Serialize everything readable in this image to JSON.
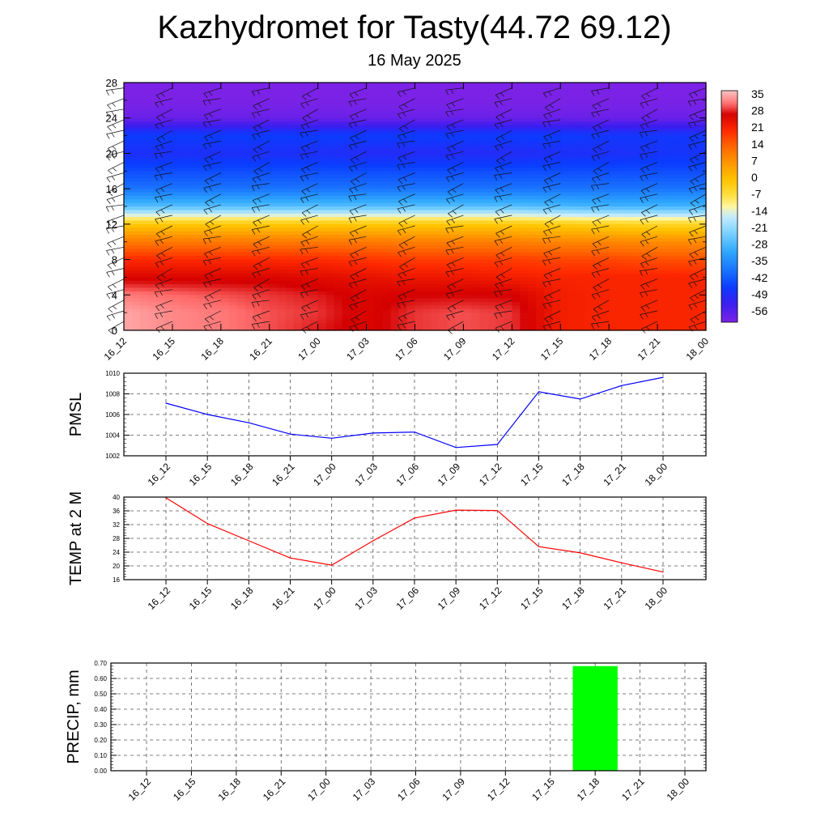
{
  "title": "Kazhydromet for Tasty(44.72 69.12)",
  "subtitle": "16 May 2025",
  "time_labels": [
    "16_12",
    "16_15",
    "16_18",
    "16_21",
    "17_00",
    "17_03",
    "17_06",
    "17_09",
    "17_12",
    "17_15",
    "17_18",
    "17_21",
    "18_00"
  ],
  "chart_data": [
    {
      "type": "heatmap",
      "name": "temperature-cross-section",
      "x": [
        "16_12",
        "16_15",
        "16_18",
        "16_21",
        "17_00",
        "17_03",
        "17_06",
        "17_09",
        "17_12",
        "17_15",
        "17_18",
        "17_21",
        "18_00"
      ],
      "y_ticks": [
        0,
        4,
        8,
        12,
        16,
        20,
        24,
        28
      ],
      "ylim": [
        0,
        28
      ],
      "colorbar_labels": [
        "35",
        "28",
        "21",
        "14",
        "7",
        "0",
        "-7",
        "-14",
        "-21",
        "-28",
        "-35",
        "-42",
        "-49",
        "-56"
      ],
      "colorbar_range": [
        -60,
        38
      ],
      "colorscale": [
        {
          "v": -60,
          "color": "#7b22e6"
        },
        {
          "v": -52,
          "color": "#3a1ef0"
        },
        {
          "v": -45,
          "color": "#0a3cff"
        },
        {
          "v": -38,
          "color": "#1a74ff"
        },
        {
          "v": -30,
          "color": "#2fa8ff"
        },
        {
          "v": -22,
          "color": "#7dd3ff"
        },
        {
          "v": -15,
          "color": "#c8ecff"
        },
        {
          "v": -11,
          "color": "#fff6a0"
        },
        {
          "v": -7,
          "color": "#ffe24a"
        },
        {
          "v": 0,
          "color": "#ffc400"
        },
        {
          "v": 7,
          "color": "#ff9a00"
        },
        {
          "v": 14,
          "color": "#ff6a00"
        },
        {
          "v": 21,
          "color": "#ff2a00"
        },
        {
          "v": 28,
          "color": "#d40000"
        },
        {
          "v": 32,
          "color": "#ff6a6a"
        },
        {
          "v": 38,
          "color": "#ffc4c4"
        }
      ],
      "profile_heights": [
        0,
        2,
        4,
        6,
        8,
        10,
        12,
        14,
        16,
        18,
        20,
        22,
        24,
        26,
        28
      ],
      "temperature_profiles": [
        [
          36,
          36,
          33,
          27,
          21,
          12,
          -1,
          -26,
          -38,
          -43,
          -48,
          -45,
          -58,
          -60,
          -60
        ],
        [
          34,
          34,
          32,
          27,
          21,
          12,
          -1,
          -26,
          -38,
          -43,
          -48,
          -45,
          -58,
          -60,
          -60
        ],
        [
          33,
          33,
          31,
          27,
          21,
          12,
          -1,
          -26,
          -38,
          -43,
          -48,
          -45,
          -58,
          -60,
          -60
        ],
        [
          31,
          31,
          30,
          27,
          21,
          12,
          -1,
          -26,
          -38,
          -43,
          -48,
          -45,
          -58,
          -60,
          -60
        ],
        [
          29,
          30,
          29,
          26,
          21,
          12,
          -1,
          -26,
          -38,
          -43,
          -48,
          -45,
          -58,
          -60,
          -60
        ],
        [
          27,
          27,
          27,
          25,
          20,
          12,
          -1,
          -26,
          -38,
          -43,
          -49,
          -45,
          -58,
          -60,
          -60
        ],
        [
          30,
          30,
          28,
          24,
          19,
          11,
          -1,
          -26,
          -38,
          -43,
          -49,
          -45,
          -58,
          -60,
          -60
        ],
        [
          31,
          31,
          28,
          24,
          19,
          11,
          -1,
          -26,
          -38,
          -43,
          -49,
          -45,
          -58,
          -60,
          -60
        ],
        [
          30,
          30,
          28,
          23,
          19,
          11,
          -1,
          -26,
          -38,
          -43,
          -49,
          -45,
          -58,
          -60,
          -60
        ],
        [
          23,
          23,
          23,
          22,
          18,
          10,
          -2,
          -27,
          -38,
          -43,
          -48,
          -45,
          -58,
          -60,
          -60
        ],
        [
          22,
          22,
          22,
          22,
          18,
          10,
          -3,
          -28,
          -38,
          -43,
          -48,
          -46,
          -58,
          -60,
          -60
        ],
        [
          22,
          22,
          22,
          22,
          17,
          9,
          -4,
          -28,
          -38,
          -43,
          -47,
          -46,
          -58,
          -60,
          -60
        ],
        [
          22,
          22,
          22,
          22,
          17,
          9,
          -4,
          -28,
          -38,
          -43,
          -47,
          -46,
          -58,
          -60,
          -60
        ]
      ]
    },
    {
      "type": "line",
      "name": "pmsl",
      "ylabel": "PMSL",
      "x": [
        "16_12",
        "16_15",
        "16_18",
        "16_21",
        "17_00",
        "17_03",
        "17_06",
        "17_09",
        "17_12",
        "17_15",
        "17_18",
        "17_21",
        "18_00"
      ],
      "values": [
        1007.1,
        1006.0,
        1005.2,
        1004.1,
        1003.7,
        1004.2,
        1004.3,
        1002.8,
        1003.1,
        1008.2,
        1007.5,
        1008.8,
        1009.6
      ],
      "ylim": [
        1002,
        1010
      ],
      "y_ticks": [
        1002,
        1004,
        1006,
        1008,
        1010
      ],
      "color": "#0000ff",
      "grid": true
    },
    {
      "type": "line",
      "name": "temp-2m",
      "ylabel": "TEMP at 2 M",
      "x": [
        "16_12",
        "16_15",
        "16_18",
        "16_21",
        "17_00",
        "17_03",
        "17_06",
        "17_09",
        "17_12",
        "17_15",
        "17_18",
        "17_21",
        "18_00"
      ],
      "values": [
        39.8,
        32.3,
        27.3,
        22.3,
        20.2,
        27.3,
        33.9,
        36.2,
        36.1,
        25.6,
        23.8,
        20.9,
        18.2
      ],
      "ylim": [
        16,
        40
      ],
      "y_ticks": [
        16,
        20,
        24,
        28,
        32,
        36,
        40
      ],
      "color": "#ff0000",
      "grid": true
    },
    {
      "type": "bar",
      "name": "precip",
      "ylabel": "PRECIP, mm",
      "categories": [
        "16_12",
        "16_15",
        "16_18",
        "16_21",
        "17_00",
        "17_03",
        "17_06",
        "17_09",
        "17_12",
        "17_15",
        "17_18",
        "17_21",
        "18_00"
      ],
      "values": [
        0,
        0,
        0,
        0,
        0,
        0,
        0,
        0,
        0,
        0,
        0.68,
        0,
        0
      ],
      "ylim": [
        0,
        0.7
      ],
      "y_ticks": [
        "0.00",
        "0.10",
        "0.20",
        "0.30",
        "0.40",
        "0.50",
        "0.60",
        "0.70"
      ],
      "color": "#00ff00",
      "grid": true
    }
  ]
}
